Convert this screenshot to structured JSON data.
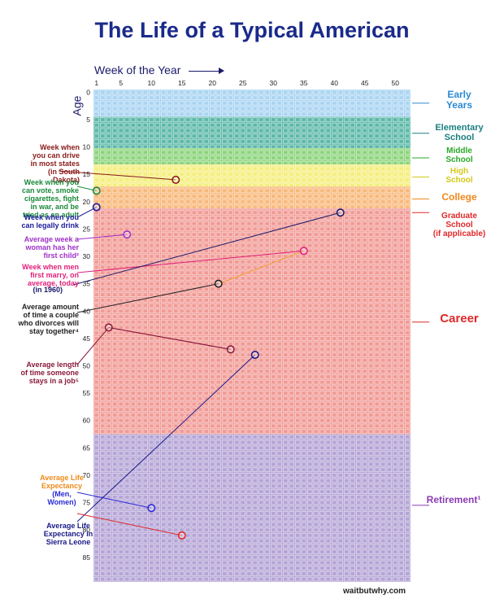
{
  "title": "The Life of a Typical American",
  "axis": {
    "week_title": "Week of the Year",
    "age_title": "Age",
    "week_ticks": [
      1,
      5,
      10,
      15,
      20,
      25,
      30,
      35,
      40,
      45,
      50
    ],
    "age_ticks": [
      0,
      5,
      10,
      15,
      20,
      25,
      30,
      35,
      40,
      45,
      50,
      55,
      60,
      65,
      70,
      75,
      80,
      85
    ]
  },
  "credit": "waitbutwhy.com",
  "colors": {
    "early_years": "#a9d4f2",
    "elementary": "#5cb8a8",
    "middle": "#8cd47c",
    "high": "#f4ee7c",
    "college": "#f8b87a",
    "career": "#f19a95",
    "retirement": "#b4a4d6"
  },
  "chart_data": {
    "type": "table",
    "weeks_per_year": 52,
    "years": 90,
    "stages": [
      {
        "name": "Early Years",
        "from_age": 0,
        "to_age": 5,
        "color": "#a9d4f2",
        "label_color": "#2a8ad4",
        "label_lines": [
          "Early",
          "Years"
        ]
      },
      {
        "name": "Elementary School",
        "from_age": 5,
        "to_age": 10.7,
        "color": "#5cb8a8",
        "label_color": "#1a8080",
        "label_lines": [
          "Elementary",
          "School"
        ]
      },
      {
        "name": "Middle School",
        "from_age": 10.7,
        "to_age": 13.7,
        "color": "#8cd47c",
        "label_color": "#2aa82a",
        "label_lines": [
          "Middle",
          "School"
        ]
      },
      {
        "name": "High School",
        "from_age": 13.7,
        "to_age": 17.7,
        "color": "#f4ee7c",
        "label_color": "#d4c81a",
        "label_lines": [
          "High",
          "School"
        ]
      },
      {
        "name": "College",
        "from_age": 17.7,
        "to_age": 21.7,
        "color": "#f8b87a",
        "label_color": "#f0881a",
        "label_lines": [
          "College"
        ]
      },
      {
        "name": "Graduate School",
        "from_age": 21.7,
        "to_age": 23.7,
        "color": "#f19a95",
        "label_color": "#e02828",
        "label_lines": [
          "Graduate",
          "School",
          "(if applicable)"
        ]
      },
      {
        "name": "Career",
        "from_age": 23.7,
        "to_age": 63,
        "color": "#f19a95",
        "label_color": "#e02828",
        "label_lines": [
          "Career"
        ]
      },
      {
        "name": "Retirement",
        "from_age": 63,
        "to_age": 90,
        "color": "#b4a4d6",
        "label_color": "#8a3ab4",
        "label_lines": [
          "Retirement",
          "1"
        ]
      }
    ],
    "milestones": [
      {
        "name": "driving",
        "age": 16,
        "week": 14,
        "color": "#8a1a1a",
        "label_lines": [
          "Week when",
          "you can drive",
          "in most states",
          "(in South",
          "Dakota)"
        ]
      },
      {
        "name": "voting",
        "age": 18,
        "week": 1,
        "color": "#1a8a3a",
        "label_lines": [
          "Week when you",
          "can vote, smoke",
          "cigarettes, fight",
          "in war, and be",
          "tried as an adult"
        ]
      },
      {
        "name": "drinking",
        "age": 21,
        "week": 1,
        "color": "#1a1a9a",
        "label_lines": [
          "Week when you",
          "can legally drink"
        ]
      },
      {
        "name": "first-child",
        "age": 26,
        "week": 6,
        "color": "#a030c8",
        "label_lines": [
          "Average week a",
          "woman has her",
          "first child",
          "2"
        ]
      },
      {
        "name": "men-marry-today",
        "age": 29,
        "week": 35,
        "color": "#e0207a",
        "label_lines": [
          "Week when men",
          "first marry, on",
          "average, today"
        ]
      },
      {
        "name": "men-marry-1960",
        "age": 22,
        "week": 41,
        "color": "#1a1a6a",
        "label_lines": [
          "(in 1960)"
        ]
      },
      {
        "name": "divorce",
        "age": 35,
        "week": 21,
        "color": "#222222",
        "label_lines": [
          "Average amount",
          "of time a couple",
          "who divorces will",
          "stay together",
          "4"
        ]
      },
      {
        "name": "job-length",
        "age": 43,
        "week": 3,
        "color": "#8a1a3a",
        "label_lines": [
          "Average length",
          "of time someone",
          "stays in a job",
          "5"
        ]
      },
      {
        "name": "job-length-end",
        "age": 47,
        "week": 23,
        "color": "#8a1a3a",
        "label_lines": []
      },
      {
        "name": "sierra-leone",
        "age": 48,
        "week": 27,
        "color": "#1a1a8a",
        "label_lines": [
          "Average Life",
          "Expectancy in",
          "Sierra Leone"
        ]
      },
      {
        "name": "life-men",
        "age": 76,
        "week": 10,
        "color": "#2a2ad4",
        "label_lines": [
          "Average Life",
          "Expectancy",
          "(Men,",
          "Women)"
        ]
      },
      {
        "name": "life-women",
        "age": 81,
        "week": 15,
        "color": "#e02828",
        "label_lines": []
      }
    ]
  },
  "left_labels": [
    {
      "key": "driving",
      "lines": [
        "Week when",
        "you can drive",
        "in most states",
        "(in South",
        "Dakota)"
      ],
      "color": "#8a1a1a"
    },
    {
      "key": "voting",
      "lines": [
        "Week when you",
        "can vote, smoke",
        "cigarettes, fight",
        "in war, and be",
        "tried as an adult"
      ],
      "color": "#1a8a3a"
    },
    {
      "key": "drinking",
      "lines": [
        "Week when you",
        "can legally drink"
      ],
      "color": "#1a1a9a"
    },
    {
      "key": "first-child",
      "lines": [
        "Average week a",
        "woman has her",
        "first child²"
      ],
      "color": "#a030c8"
    },
    {
      "key": "marry",
      "lines": [
        "Week when men",
        "first marry, on",
        "average, today"
      ],
      "color": "#e0207a"
    },
    {
      "key": "marry-1960",
      "lines": [
        "(in 1960)"
      ],
      "color": "#1a1a6a"
    },
    {
      "key": "divorce",
      "lines": [
        "Average amount",
        "of time a couple",
        "who divorces will",
        "stay together⁴"
      ],
      "color": "#222222"
    },
    {
      "key": "job",
      "lines": [
        "Average length",
        "of time someone",
        "stays in a job⁵"
      ],
      "color": "#8a1a3a"
    },
    {
      "key": "life-exp",
      "lines": [
        "Average Life",
        "Expectancy"
      ],
      "color": "#f08a1a"
    },
    {
      "key": "life-exp-mw",
      "lines": [
        "(Men,",
        "Women)"
      ],
      "color": "#2a2ad4"
    },
    {
      "key": "sierra",
      "lines": [
        "Average Life",
        "Expectancy in",
        "Sierra Leone"
      ],
      "color": "#1a1a8a"
    }
  ],
  "right_labels": [
    {
      "key": "early",
      "lines": [
        "Early",
        "Years"
      ],
      "color": "#2a8ad4"
    },
    {
      "key": "elementary",
      "lines": [
        "Elementary",
        "School"
      ],
      "color": "#1a8080"
    },
    {
      "key": "middle",
      "lines": [
        "Middle",
        "School"
      ],
      "color": "#2aa82a"
    },
    {
      "key": "high",
      "lines": [
        "High",
        "School"
      ],
      "color": "#d4c81a"
    },
    {
      "key": "college",
      "lines": [
        "College"
      ],
      "color": "#f0881a"
    },
    {
      "key": "grad",
      "lines": [
        "Graduate",
        "School",
        "(if applicable)"
      ],
      "color": "#e02828"
    },
    {
      "key": "career",
      "lines": [
        "Career"
      ],
      "color": "#e02828"
    },
    {
      "key": "retirement",
      "lines": [
        "Retirement¹"
      ],
      "color": "#8a3ab4"
    }
  ]
}
